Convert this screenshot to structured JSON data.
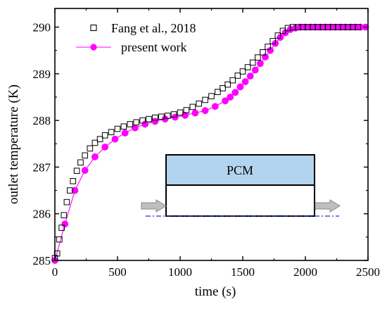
{
  "chart_data": {
    "type": "scatter",
    "xlabel": "time (s)",
    "ylabel": "outlet temperature (K)",
    "xlim": [
      0,
      2500
    ],
    "ylim": [
      285,
      290.4
    ],
    "xticks": [
      0,
      500,
      1000,
      1500,
      2000,
      2500
    ],
    "yticks": [
      285,
      286,
      287,
      288,
      289,
      290
    ],
    "legend_position": "top-left",
    "series": [
      {
        "name": "Fang et al., 2018",
        "marker": "open-square",
        "color": "#000000",
        "x": [
          0,
          18,
          36,
          54,
          72,
          95,
          120,
          145,
          175,
          205,
          240,
          280,
          320,
          360,
          400,
          450,
          500,
          550,
          600,
          650,
          700,
          750,
          800,
          850,
          900,
          950,
          1000,
          1050,
          1100,
          1150,
          1200,
          1250,
          1300,
          1340,
          1380,
          1420,
          1460,
          1500,
          1540,
          1580,
          1620,
          1660,
          1700,
          1740,
          1780,
          1820,
          1860,
          1900,
          1940,
          1980,
          2020,
          2060,
          2100,
          2140,
          2180,
          2220,
          2260,
          2300,
          2340,
          2380,
          2420
        ],
        "y": [
          285.05,
          285.15,
          285.45,
          285.7,
          285.97,
          286.25,
          286.5,
          286.7,
          286.92,
          287.1,
          287.25,
          287.4,
          287.52,
          287.6,
          287.68,
          287.75,
          287.82,
          287.87,
          287.92,
          287.96,
          288.0,
          288.03,
          288.06,
          288.08,
          288.1,
          288.13,
          288.17,
          288.22,
          288.29,
          288.36,
          288.44,
          288.52,
          288.61,
          288.69,
          288.77,
          288.86,
          288.96,
          289.05,
          289.14,
          289.24,
          289.35,
          289.46,
          289.58,
          289.7,
          289.82,
          289.92,
          289.98,
          290.0,
          290.0,
          290.0,
          290.0,
          290.0,
          290.0,
          290.0,
          290.0,
          290.0,
          290.0,
          290.0,
          290.0,
          290.0,
          290.0
        ]
      },
      {
        "name": "present work",
        "marker": "filled-circle",
        "color": "#ff00ff",
        "x": [
          0,
          80,
          160,
          240,
          320,
          400,
          480,
          560,
          640,
          720,
          800,
          880,
          960,
          1040,
          1120,
          1200,
          1280,
          1360,
          1400,
          1440,
          1480,
          1520,
          1560,
          1600,
          1640,
          1680,
          1720,
          1760,
          1800,
          1840,
          1880,
          1920,
          1960,
          2000,
          2040,
          2080,
          2120,
          2160,
          2200,
          2240,
          2280,
          2320,
          2360,
          2400,
          2440,
          2480
        ],
        "y": [
          285.0,
          285.78,
          286.5,
          286.93,
          287.22,
          287.43,
          287.6,
          287.73,
          287.84,
          287.92,
          287.98,
          288.03,
          288.07,
          288.11,
          288.16,
          288.21,
          288.3,
          288.42,
          288.5,
          288.6,
          288.72,
          288.83,
          288.95,
          289.08,
          289.22,
          289.36,
          289.5,
          289.65,
          289.78,
          289.88,
          289.95,
          289.98,
          290.0,
          290.0,
          290.0,
          290.0,
          290.0,
          290.0,
          290.0,
          290.0,
          290.0,
          290.0,
          290.0,
          290.0,
          290.0,
          290.0
        ]
      }
    ],
    "inset": {
      "label": "PCM",
      "fill_color": "#b3d4ee"
    }
  }
}
